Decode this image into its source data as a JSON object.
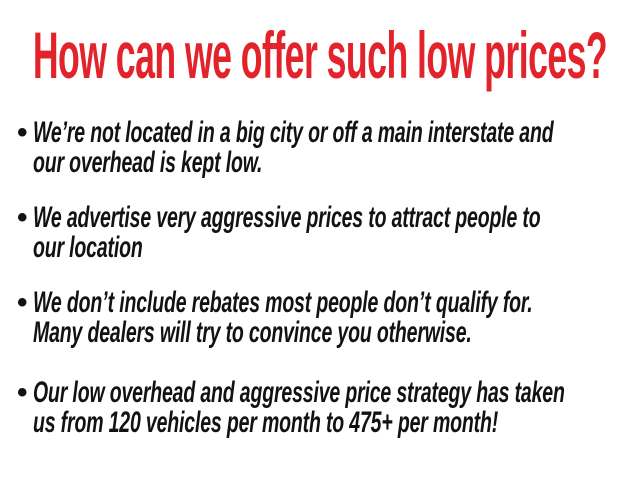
{
  "colors": {
    "accent": "#e3232b",
    "ink": "#121212",
    "background": "#ffffff"
  },
  "heading": {
    "text": "How can we offer such low prices?"
  },
  "list": {
    "bullet_glyph": "•"
  },
  "bullets": [
    {
      "lines": [
        "We’re not located in a big city or off a main interstate and",
        "our overhead is kept low."
      ]
    },
    {
      "lines": [
        "We advertise very aggressive prices to attract people to",
        "our location"
      ]
    },
    {
      "lines": [
        "We don’t include rebates most people don’t qualify for.",
        "Many dealers will try to convince you otherwise."
      ]
    },
    {
      "lines": [
        "Our low overhead and aggressive price strategy has taken",
        "us from 120 vehicles per month to 475+ per month!"
      ]
    }
  ]
}
